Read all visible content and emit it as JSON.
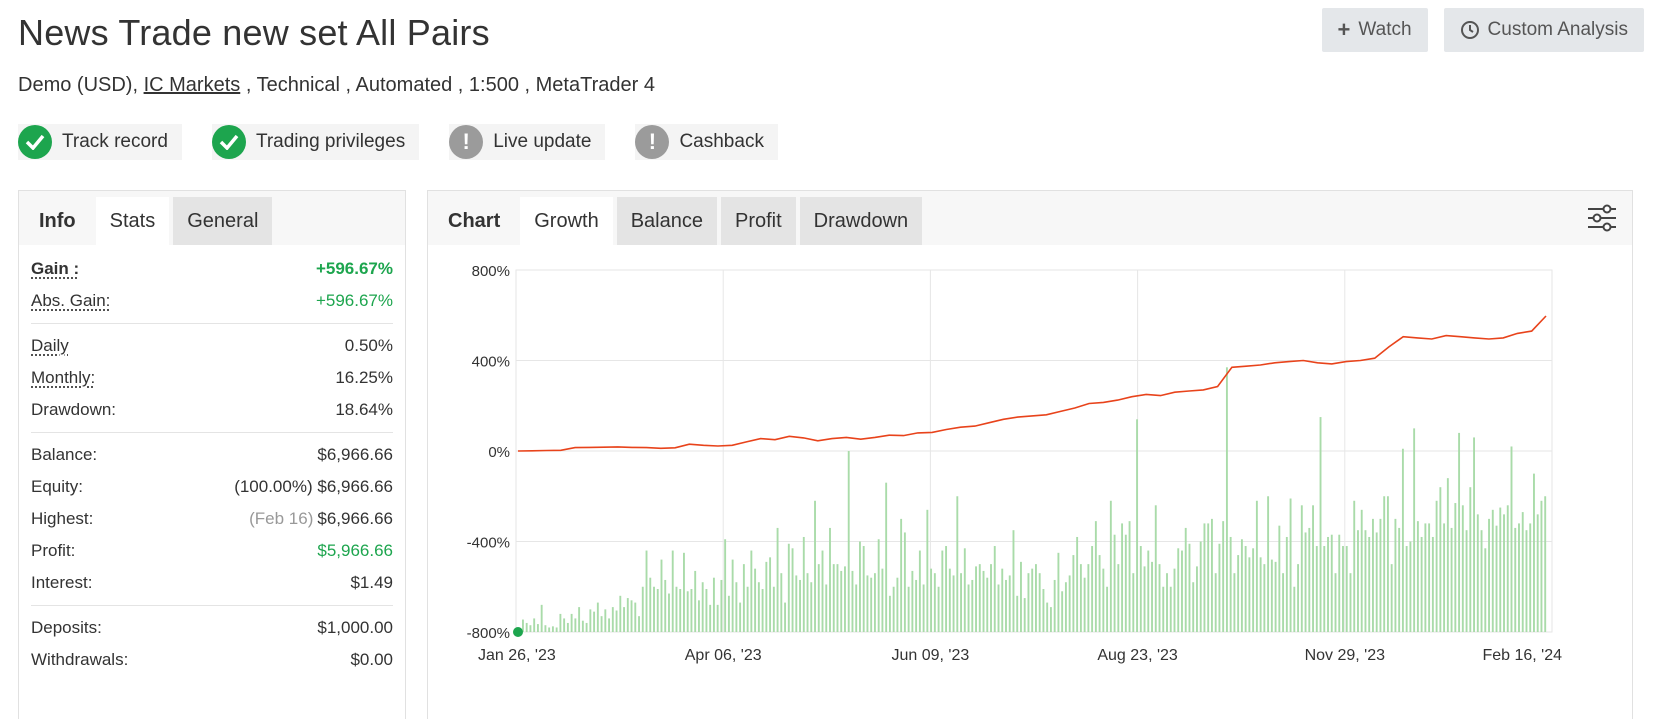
{
  "header": {
    "title": "News Trade new set All Pairs",
    "subtitle_prefix": "Demo (USD), ",
    "broker": "IC Markets",
    "subtitle_suffix": " , Technical , Automated , 1:500 , MetaTrader 4"
  },
  "top_buttons": {
    "watch_label": "Watch",
    "analysis_label": "Custom Analysis"
  },
  "badges": [
    {
      "label": "Track record",
      "status": "verified"
    },
    {
      "label": "Trading privileges",
      "status": "verified"
    },
    {
      "label": "Live update",
      "status": "warning"
    },
    {
      "label": "Cashback",
      "status": "warning"
    }
  ],
  "left_panel": {
    "tab_label": "Info",
    "tabs": [
      "Stats",
      "General"
    ],
    "stats": {
      "gain_label": "Gain :",
      "gain_value": "+596.67%",
      "abs_gain_label": "Abs. Gain:",
      "abs_gain_value": "+596.67%",
      "daily_label": "Daily",
      "daily_value": "0.50%",
      "monthly_label": "Monthly:",
      "monthly_value": "16.25%",
      "drawdown_label": "Drawdown:",
      "drawdown_value": "18.64%",
      "balance_label": "Balance:",
      "balance_value": "$6,966.66",
      "equity_label": "Equity:",
      "equity_pct": "(100.00%)",
      "equity_value": "$6,966.66",
      "highest_label": "Highest:",
      "highest_date": "(Feb 16)",
      "highest_value": "$6,966.66",
      "profit_label": "Profit:",
      "profit_value": "$5,966.66",
      "interest_label": "Interest:",
      "interest_value": "$1.49",
      "deposits_label": "Deposits:",
      "deposits_value": "$1,000.00",
      "withdrawals_label": "Withdrawals:",
      "withdrawals_value": "$0.00"
    }
  },
  "right_panel": {
    "tab_label": "Chart",
    "tabs": [
      "Growth",
      "Balance",
      "Profit",
      "Drawdown"
    ],
    "settings_icon": "sliders-icon"
  },
  "colors": {
    "accent_green": "#1da54e",
    "line_red": "#e8431b",
    "bar_green": "#a9dba9"
  },
  "chart_data": {
    "type": "line",
    "y_ticks": [
      "800%",
      "400%",
      "0%",
      "-400%",
      "-800%"
    ],
    "ylim": [
      -800,
      800
    ],
    "x_ticks": [
      "Jan 26, '23",
      "Apr 06, '23",
      "Jun 09, '23",
      "Aug 23, '23",
      "Nov 29, '23",
      "Feb 16, '24"
    ],
    "series": [
      {
        "values": [
          0,
          1,
          2,
          3,
          15,
          16,
          17,
          18,
          16,
          15,
          12,
          14,
          30,
          25,
          22,
          25,
          40,
          55,
          50,
          65,
          58,
          45,
          55,
          60,
          52,
          60,
          70,
          68,
          80,
          82,
          95,
          105,
          110,
          125,
          140,
          150,
          155,
          160,
          175,
          190,
          210,
          215,
          225,
          240,
          250,
          245,
          260,
          265,
          270,
          285,
          370,
          375,
          380,
          390,
          395,
          400,
          390,
          385,
          395,
          400,
          410,
          460,
          505,
          500,
          495,
          510,
          505,
          500,
          495,
          500,
          520,
          530,
          596.67
        ]
      },
      {
        "values": [
          55,
          40,
          30,
          60,
          35,
          120,
          30,
          20,
          25,
          20,
          80,
          60,
          40,
          80,
          60,
          110,
          50,
          40,
          100,
          90,
          130,
          70,
          100,
          60,
          110,
          95,
          160,
          110,
          150,
          140,
          130,
          70,
          200,
          360,
          240,
          200,
          190,
          320,
          230,
          170,
          360,
          200,
          190,
          350,
          180,
          190,
          270,
          140,
          220,
          190,
          120,
          240,
          120,
          230,
          410,
          160,
          320,
          220,
          130,
          300,
          200,
          360,
          280,
          220,
          190,
          310,
          330,
          200,
          460,
          260,
          130,
          390,
          370,
          250,
          230,
          420,
          260,
          220,
          580,
          300,
          360,
          210,
          460,
          300,
          300,
          270,
          290,
          800,
          270,
          210,
          400,
          380,
          250,
          240,
          260,
          410,
          280,
          660,
          160,
          200,
          240,
          500,
          440,
          200,
          270,
          230,
          360,
          210,
          540,
          280,
          260,
          200,
          360,
          380,
          280,
          250,
          600,
          260,
          370,
          210,
          230,
          290,
          300,
          270,
          240,
          300,
          380,
          210,
          280,
          230,
          250,
          450,
          160,
          310,
          150,
          260,
          280,
          300,
          260,
          190,
          130,
          110,
          230,
          350,
          180,
          220,
          250,
          340,
          420,
          300,
          240,
          300,
          380,
          490,
          340,
          280,
          200,
          580,
          430,
          300,
          480,
          430,
          490,
          260,
          940,
          380,
          290,
          360,
          310,
          560,
          300,
          200,
          260,
          200,
          280,
          370,
          360,
          460,
          390,
          220,
          290,
          400,
          480,
          480,
          500,
          260,
          390,
          490,
          1170,
          420,
          260,
          340,
          410,
          380,
          330,
          370,
          580,
          330,
          300,
          600,
          320,
          310,
          470,
          260,
          420,
          590,
          200,
          300,
          560,
          440,
          460,
          560,
          380,
          950,
          380,
          420,
          430,
          260,
          430,
          380,
          380,
          260,
          580,
          450,
          540,
          450,
          420,
          500,
          440,
          500,
          600,
          600,
          300,
          500,
          460,
          810,
          380,
          400,
          900,
          490,
          420,
          480,
          480,
          420,
          580,
          640,
          480,
          680,
          460,
          570,
          880,
          560,
          450,
          640,
          860,
          520,
          450,
          370,
          500,
          540,
          470,
          550,
          520,
          560,
          820,
          460,
          480,
          530,
          450,
          480,
          700,
          520,
          580,
          600
        ]
      }
    ]
  }
}
